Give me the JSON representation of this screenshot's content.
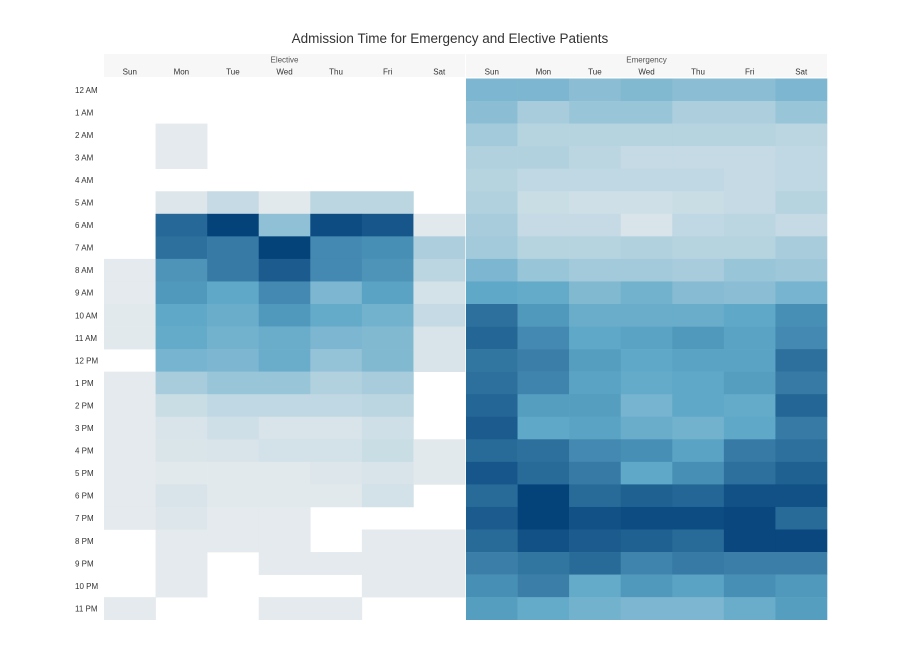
{
  "chart_data": {
    "type": "heatmap",
    "title": "Admission Time for Emergency and Elective Patients",
    "groups": [
      {
        "name": "Elective",
        "days": [
          "Sun",
          "Mon",
          "Tue",
          "Wed",
          "Thu",
          "Fri",
          "Sat"
        ],
        "hours": [
          "12 AM",
          "1 AM",
          "2 AM",
          "3 AM",
          "4 AM",
          "5 AM",
          "6 AM",
          "7 AM",
          "8 AM",
          "9 AM",
          "10 AM",
          "11 AM",
          "12 PM",
          "1 PM",
          "2 PM",
          "3 PM",
          "4 PM",
          "5 PM",
          "6 PM",
          "7 PM",
          "8 PM",
          "9 PM",
          "10 PM",
          "11 PM"
        ],
        "values": [
          [
            null,
            null,
            null,
            null,
            null,
            null,
            null
          ],
          [
            null,
            null,
            null,
            null,
            null,
            null,
            null
          ],
          [
            null,
            0.05,
            null,
            null,
            null,
            null,
            null
          ],
          [
            null,
            0.05,
            null,
            null,
            null,
            null,
            null
          ],
          [
            null,
            null,
            null,
            null,
            null,
            null,
            null
          ],
          [
            null,
            0.08,
            0.18,
            0.06,
            0.22,
            0.22,
            null
          ],
          [
            null,
            0.85,
            1.0,
            0.4,
            0.96,
            0.92,
            0.06
          ],
          [
            null,
            0.82,
            0.78,
            1.1,
            0.72,
            0.7,
            0.28
          ],
          [
            0.05,
            0.68,
            0.78,
            0.9,
            0.72,
            0.68,
            0.22
          ],
          [
            0.05,
            0.66,
            0.6,
            0.72,
            0.48,
            0.62,
            0.12
          ],
          [
            0.06,
            0.6,
            0.56,
            0.66,
            0.58,
            0.52,
            0.18
          ],
          [
            0.06,
            0.58,
            0.52,
            0.56,
            0.48,
            0.46,
            0.1
          ],
          [
            null,
            0.5,
            0.48,
            0.56,
            0.38,
            0.46,
            0.1
          ],
          [
            0.05,
            0.3,
            0.36,
            0.36,
            0.26,
            0.3,
            null
          ],
          [
            0.05,
            0.16,
            0.2,
            0.2,
            0.2,
            0.22,
            null
          ],
          [
            0.05,
            0.1,
            0.14,
            0.1,
            0.1,
            0.14,
            null
          ],
          [
            0.05,
            0.09,
            0.1,
            0.12,
            0.12,
            0.16,
            0.06
          ],
          [
            0.05,
            0.06,
            0.06,
            0.06,
            0.08,
            0.1,
            0.06
          ],
          [
            0.05,
            0.1,
            0.06,
            0.06,
            0.06,
            0.12,
            null
          ],
          [
            0.05,
            0.08,
            0.05,
            0.05,
            null,
            null,
            null
          ],
          [
            null,
            0.05,
            0.05,
            0.05,
            null,
            0.05,
            0.05
          ],
          [
            null,
            0.05,
            null,
            0.05,
            0.05,
            0.05,
            0.05
          ],
          [
            null,
            0.05,
            null,
            null,
            null,
            0.05,
            0.05
          ],
          [
            0.05,
            null,
            null,
            0.05,
            0.05,
            null,
            null
          ]
        ]
      },
      {
        "name": "Emergency",
        "days": [
          "Sun",
          "Mon",
          "Tue",
          "Wed",
          "Thu",
          "Fri",
          "Sat"
        ],
        "hours": [
          "12 AM",
          "1 AM",
          "2 AM",
          "3 AM",
          "4 AM",
          "5 AM",
          "6 AM",
          "7 AM",
          "8 AM",
          "9 AM",
          "10 AM",
          "11 AM",
          "12 PM",
          "1 PM",
          "2 PM",
          "3 PM",
          "4 PM",
          "5 PM",
          "6 PM",
          "7 PM",
          "8 PM",
          "9 PM",
          "10 PM",
          "11 PM"
        ],
        "values": [
          [
            0.48,
            0.48,
            0.42,
            0.46,
            0.42,
            0.42,
            0.48
          ],
          [
            0.42,
            0.3,
            0.36,
            0.36,
            0.28,
            0.28,
            0.36
          ],
          [
            0.32,
            0.24,
            0.24,
            0.24,
            0.24,
            0.24,
            0.22
          ],
          [
            0.26,
            0.26,
            0.22,
            0.18,
            0.18,
            0.18,
            0.2
          ],
          [
            0.24,
            0.2,
            0.2,
            0.2,
            0.2,
            0.18,
            0.2
          ],
          [
            0.26,
            0.16,
            0.14,
            0.14,
            0.16,
            0.18,
            0.24
          ],
          [
            0.3,
            0.18,
            0.18,
            0.1,
            0.2,
            0.22,
            0.18
          ],
          [
            0.32,
            0.24,
            0.24,
            0.26,
            0.24,
            0.24,
            0.3
          ],
          [
            0.48,
            0.36,
            0.32,
            0.32,
            0.3,
            0.36,
            0.34
          ],
          [
            0.6,
            0.58,
            0.46,
            0.52,
            0.44,
            0.42,
            0.5
          ],
          [
            0.82,
            0.66,
            0.56,
            0.56,
            0.56,
            0.6,
            0.7
          ],
          [
            0.86,
            0.72,
            0.6,
            0.62,
            0.66,
            0.62,
            0.72
          ],
          [
            0.8,
            0.76,
            0.64,
            0.6,
            0.62,
            0.62,
            0.82
          ],
          [
            0.82,
            0.74,
            0.62,
            0.58,
            0.6,
            0.64,
            0.78
          ],
          [
            0.86,
            0.64,
            0.64,
            0.5,
            0.6,
            0.58,
            0.86
          ],
          [
            0.9,
            0.6,
            0.62,
            0.56,
            0.52,
            0.6,
            0.78
          ],
          [
            0.84,
            0.82,
            0.72,
            0.7,
            0.62,
            0.78,
            0.82
          ],
          [
            0.92,
            0.84,
            0.78,
            0.6,
            0.7,
            0.82,
            0.88
          ],
          [
            0.84,
            1.0,
            0.84,
            0.88,
            0.86,
            0.94,
            0.94
          ],
          [
            0.9,
            1.0,
            0.94,
            0.96,
            0.96,
            0.98,
            0.84
          ],
          [
            0.84,
            0.94,
            0.9,
            0.88,
            0.84,
            0.98,
            0.98
          ],
          [
            0.76,
            0.8,
            0.84,
            0.74,
            0.78,
            0.76,
            0.76
          ],
          [
            0.7,
            0.76,
            0.58,
            0.66,
            0.62,
            0.7,
            0.66
          ],
          [
            0.64,
            0.58,
            0.52,
            0.48,
            0.48,
            0.56,
            0.64
          ]
        ]
      }
    ],
    "color_scale": {
      "low": "#f0f0f0",
      "mid": "#5fa8c8",
      "high": "#04427a",
      "empty": "#ffffff"
    },
    "header_background": "#f7f7f7"
  }
}
